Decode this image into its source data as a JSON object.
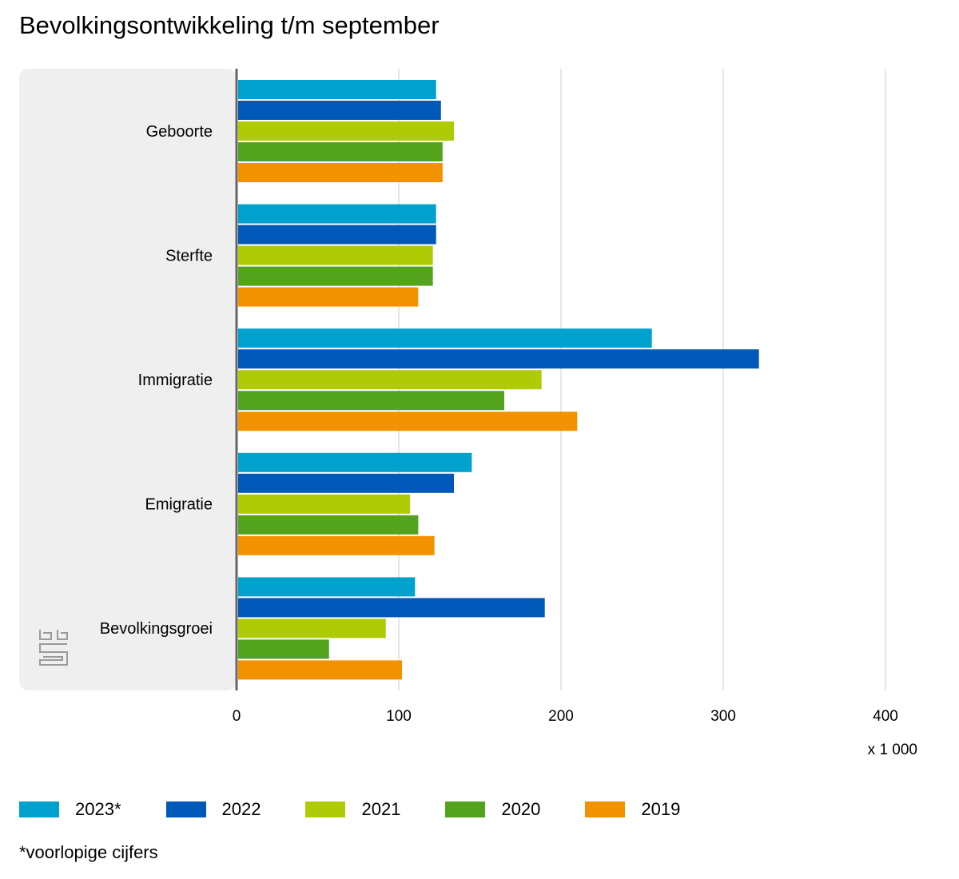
{
  "chart_data": {
    "type": "bar",
    "orientation": "horizontal",
    "title": "Bevolkingsontwikkeling t/m september",
    "unit_label": "x 1 000",
    "categories": [
      "Geboorte",
      "Sterfte",
      "Immigratie",
      "Emigratie",
      "Bevolkingsgroei"
    ],
    "xlim": [
      0,
      400
    ],
    "xticks": [
      0,
      100,
      200,
      300,
      400
    ],
    "grid": "vertical",
    "legend_position": "bottom",
    "series": [
      {
        "name": "2023*",
        "color": "#00a1cd",
        "values": [
          123,
          123,
          256,
          145,
          110
        ]
      },
      {
        "name": "2022",
        "color": "#0058b8",
        "values": [
          126,
          123,
          322,
          134,
          190
        ]
      },
      {
        "name": "2021",
        "color": "#afcb05",
        "values": [
          134,
          121,
          188,
          107,
          92
        ]
      },
      {
        "name": "2020",
        "color": "#53a31d",
        "values": [
          127,
          121,
          165,
          112,
          57
        ]
      },
      {
        "name": "2019",
        "color": "#f39200",
        "values": [
          127,
          112,
          210,
          122,
          102
        ]
      }
    ],
    "footnote": "*voorlopige cijfers"
  },
  "colors": {
    "panel_background": "#efefef",
    "grid": "#cccccc",
    "axis": "#666666",
    "logo": "#9a9a9a"
  },
  "icons": {
    "logo": "cbs-logo-icon"
  }
}
